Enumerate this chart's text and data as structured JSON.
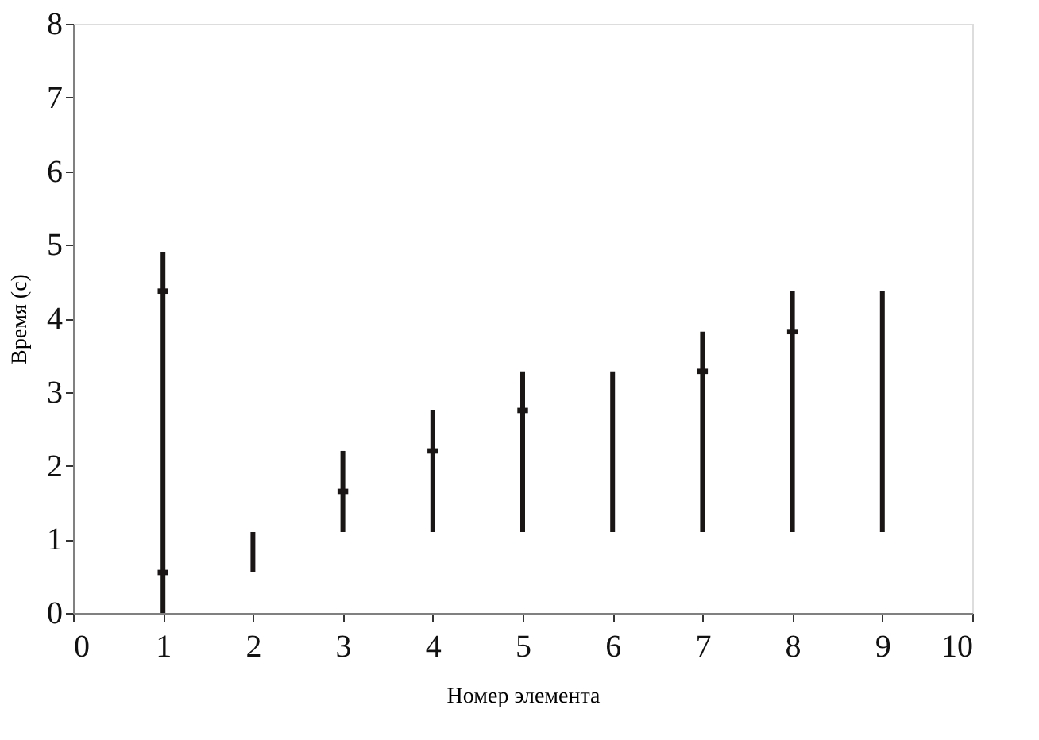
{
  "chart_data": {
    "type": "bar",
    "xlabel": "Номер элемента",
    "ylabel": "Время (с)",
    "xlim": [
      0,
      10
    ],
    "xticks": [
      0,
      1,
      2,
      3,
      4,
      5,
      6,
      7,
      8,
      9,
      10
    ],
    "ylim": [
      0,
      8
    ],
    "yticks": [
      0,
      1,
      2,
      3,
      4,
      5,
      6,
      7,
      8
    ],
    "grid": false,
    "series": [
      {
        "color": "#1a1616",
        "x": [
          1,
          2,
          3,
          4,
          5,
          6,
          7,
          8,
          9
        ],
        "base": [
          0,
          0.55,
          1.1,
          1.1,
          1.1,
          1.1,
          1.1,
          1.1,
          1.1
        ],
        "values": [
          4.9,
          0.55,
          1.1,
          1.65,
          2.18,
          2.18,
          2.72,
          3.27,
          3.27
        ]
      },
      {
        "type": "scatter",
        "color": "#1a1616",
        "x": [
          1,
          1,
          3,
          4,
          5,
          7,
          8
        ],
        "values": [
          4.37,
          0.55,
          1.65,
          2.2,
          2.75,
          3.28,
          3.82
        ]
      }
    ]
  }
}
